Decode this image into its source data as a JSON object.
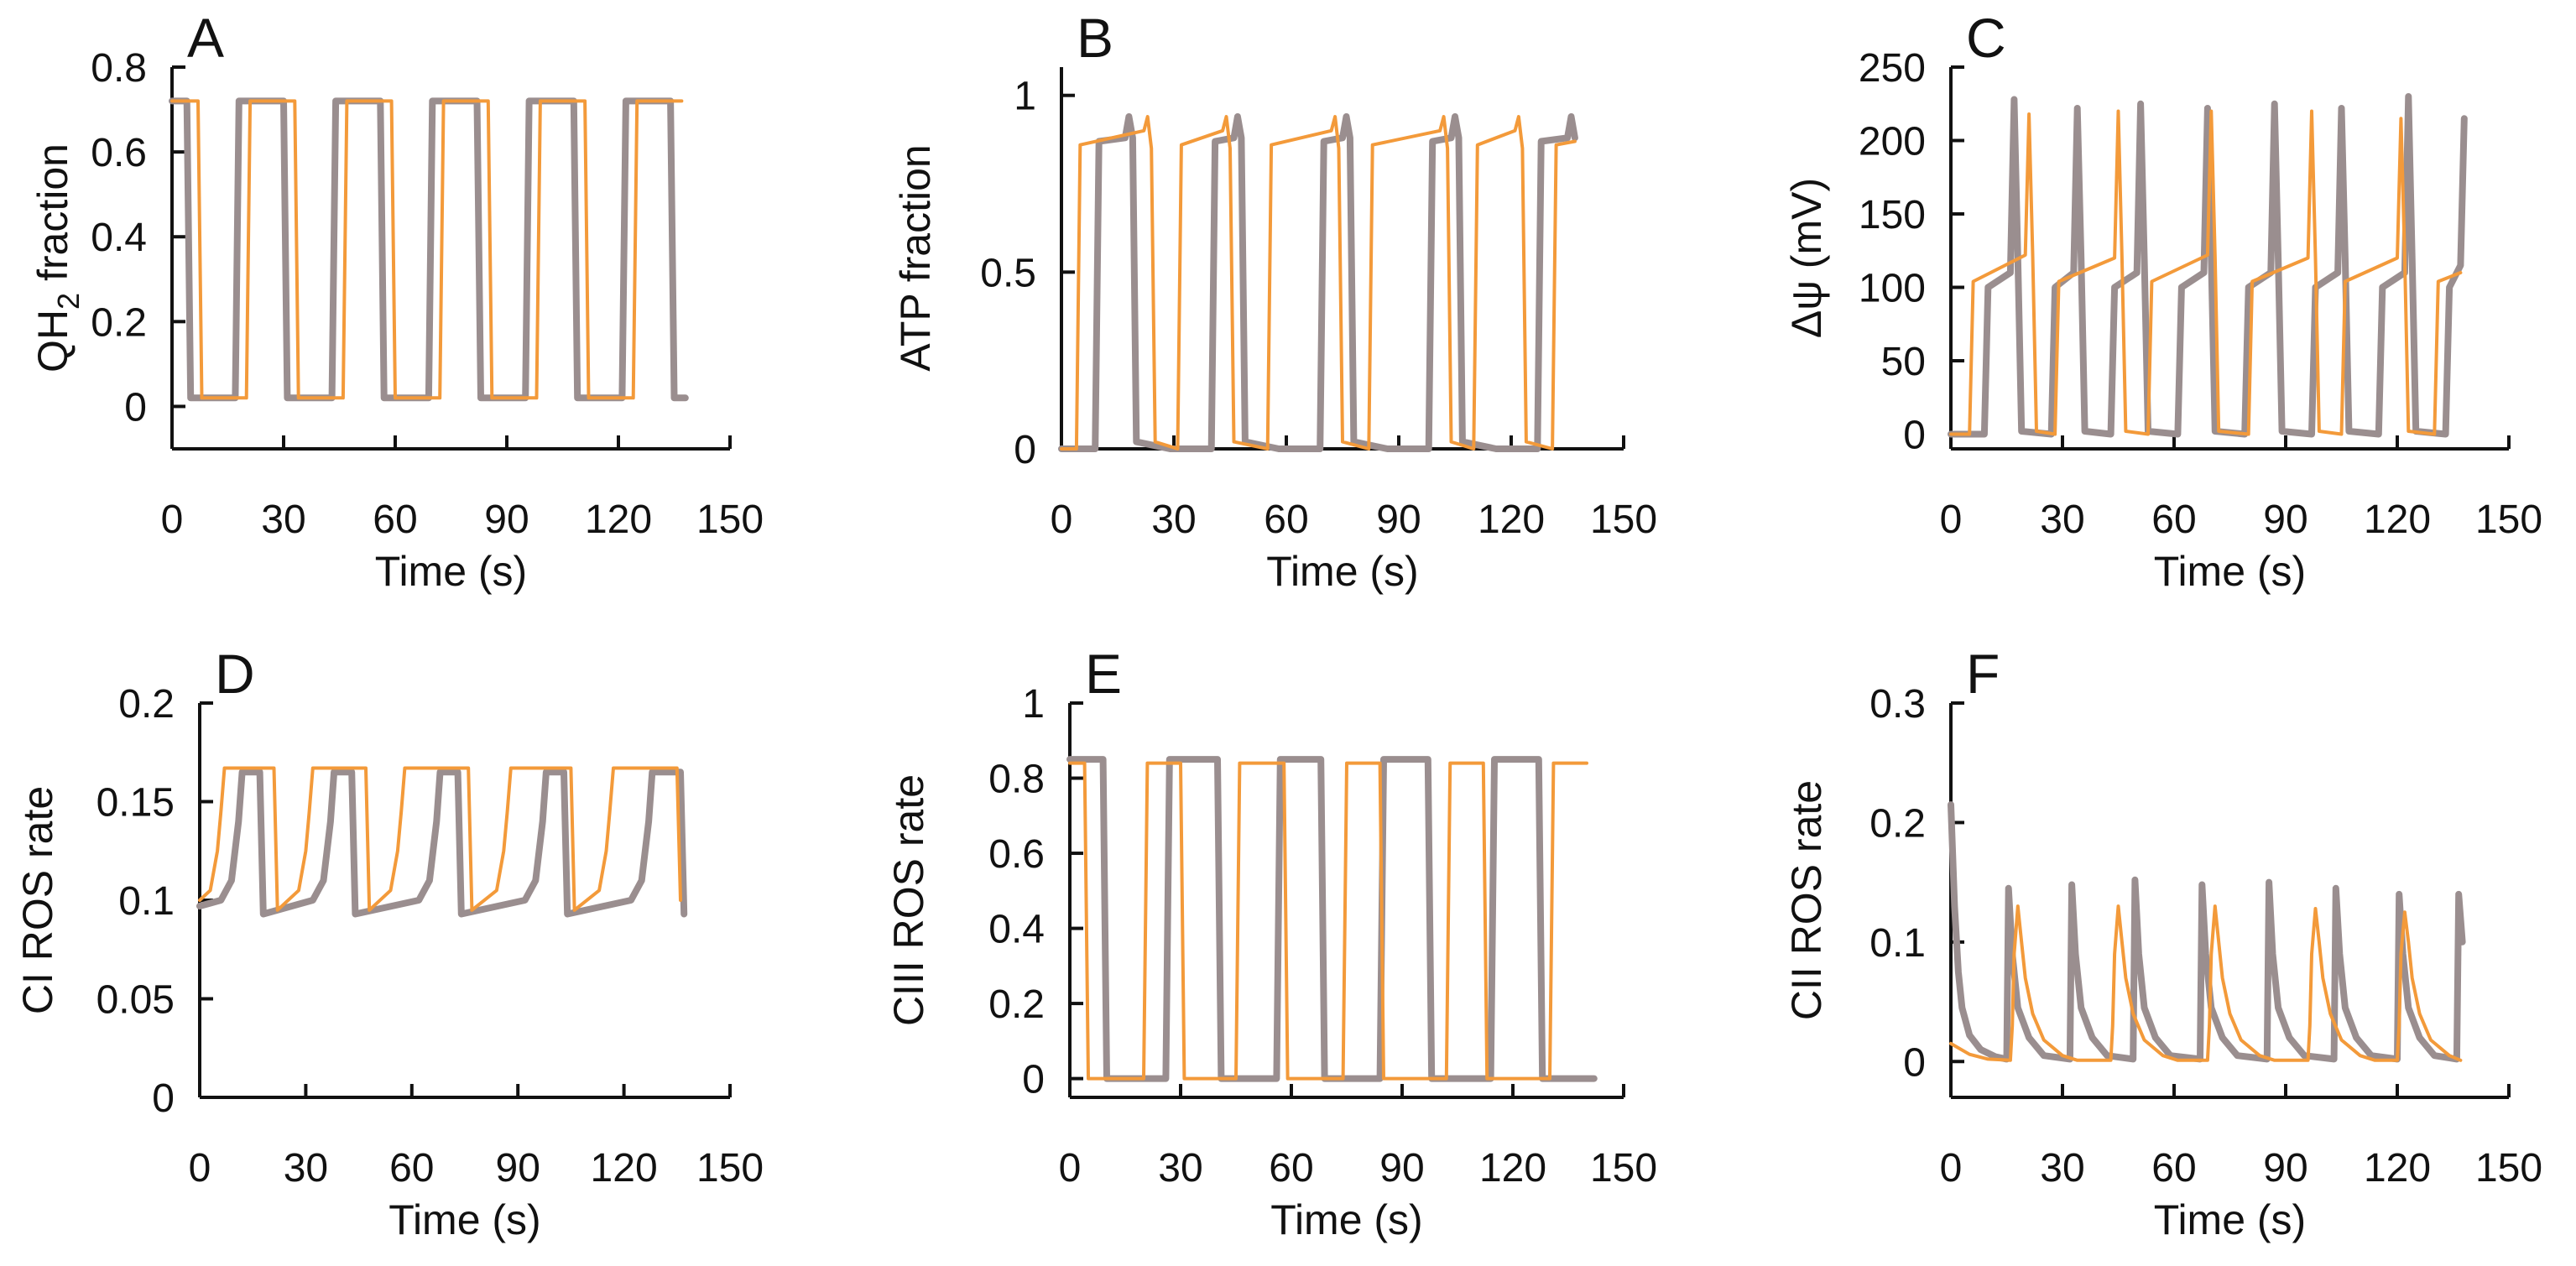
{
  "colors": {
    "gray": "#9a8e8f",
    "orange": "#f39a3a",
    "axis": "#111111"
  },
  "chart_data": [
    {
      "id": "A",
      "type": "line",
      "letter": "A",
      "xlabel": "Time (s)",
      "ylabel": "QH",
      "ylabel_sub": "2",
      "ylabel_rest": " fraction",
      "xlim": [
        0,
        150
      ],
      "ylim": [
        -0.1,
        0.8
      ],
      "xticks": [
        0,
        30,
        60,
        90,
        120,
        150
      ],
      "xtick_labels": [
        "0",
        "30",
        "60",
        "90",
        "120",
        "150"
      ],
      "yticks": [
        0,
        0.2,
        0.4,
        0.6,
        0.8
      ],
      "ytick_labels": [
        "0",
        "0.2",
        "0.4",
        "0.6",
        "0.8"
      ],
      "series": [
        {
          "name": "gray",
          "color": "gray",
          "width": 8,
          "x": [
            0,
            4,
            5,
            17,
            18,
            30,
            31,
            43,
            44,
            56,
            57,
            69,
            70,
            82,
            83,
            95,
            96,
            108,
            109,
            121,
            122,
            134,
            135,
            138
          ],
          "y": [
            0.72,
            0.72,
            0.02,
            0.02,
            0.72,
            0.72,
            0.02,
            0.02,
            0.72,
            0.72,
            0.02,
            0.02,
            0.72,
            0.72,
            0.02,
            0.02,
            0.72,
            0.72,
            0.02,
            0.02,
            0.72,
            0.72,
            0.02,
            0.02
          ]
        },
        {
          "name": "orange",
          "color": "orange",
          "width": 4,
          "x": [
            0,
            7,
            8,
            20,
            21,
            33,
            34,
            46,
            47,
            59,
            60,
            72,
            73,
            85,
            86,
            98,
            99,
            111,
            112,
            124,
            125,
            137
          ],
          "y": [
            0.72,
            0.72,
            0.02,
            0.02,
            0.72,
            0.72,
            0.02,
            0.02,
            0.72,
            0.72,
            0.02,
            0.02,
            0.72,
            0.72,
            0.02,
            0.02,
            0.72,
            0.72,
            0.02,
            0.02,
            0.72,
            0.72
          ]
        }
      ]
    },
    {
      "id": "B",
      "type": "line",
      "letter": "B",
      "xlabel": "Time (s)",
      "ylabel": "ATP fraction",
      "xlim": [
        0,
        150
      ],
      "ylim": [
        0,
        1.08
      ],
      "xticks": [
        0,
        30,
        60,
        90,
        120,
        150
      ],
      "xtick_labels": [
        "0",
        "30",
        "60",
        "90",
        "120",
        "150"
      ],
      "yticks": [
        0,
        0.5,
        1
      ],
      "ytick_labels": [
        "0",
        "0.5",
        "1"
      ],
      "series": [
        {
          "name": "gray",
          "color": "gray",
          "width": 8,
          "x": [
            0,
            9,
            10,
            17,
            18,
            19,
            20,
            29,
            30,
            40,
            41,
            46,
            47,
            48,
            49,
            58,
            59,
            69,
            70,
            75,
            76,
            77,
            78,
            87,
            88,
            98,
            99,
            104,
            105,
            106,
            107,
            116,
            117,
            127,
            128,
            135,
            136,
            137
          ],
          "y": [
            0,
            0,
            0.87,
            0.88,
            0.94,
            0.88,
            0.02,
            0,
            0,
            0,
            0.87,
            0.88,
            0.94,
            0.88,
            0.02,
            0,
            0,
            0,
            0.87,
            0.88,
            0.94,
            0.88,
            0.02,
            0,
            0,
            0,
            0.87,
            0.88,
            0.94,
            0.88,
            0.02,
            0,
            0,
            0,
            0.87,
            0.88,
            0.94,
            0.88
          ]
        },
        {
          "name": "orange",
          "color": "orange",
          "width": 4,
          "x": [
            0,
            4,
            5,
            22,
            23,
            24,
            25,
            31,
            32,
            43,
            44,
            45,
            46,
            55,
            56,
            72,
            73,
            74,
            75,
            82,
            83,
            101,
            102,
            103,
            104,
            110,
            111,
            121,
            122,
            123,
            124,
            131,
            132,
            137
          ],
          "y": [
            0,
            0,
            0.86,
            0.9,
            0.94,
            0.85,
            0.02,
            0,
            0.86,
            0.9,
            0.94,
            0.85,
            0.02,
            0,
            0.86,
            0.9,
            0.94,
            0.85,
            0.02,
            0,
            0.86,
            0.9,
            0.94,
            0.85,
            0.02,
            0,
            0.86,
            0.9,
            0.94,
            0.85,
            0.02,
            0,
            0.86,
            0.87
          ]
        }
      ]
    },
    {
      "id": "C",
      "type": "line",
      "letter": "C",
      "xlabel": "Time (s)",
      "ylabel": "Δψ (mV)",
      "xlim": [
        0,
        150
      ],
      "ylim": [
        -10,
        250
      ],
      "xticks": [
        0,
        30,
        60,
        90,
        120,
        150
      ],
      "xtick_labels": [
        "0",
        "30",
        "60",
        "90",
        "120",
        "150"
      ],
      "yticks": [
        0,
        50,
        100,
        150,
        200,
        250
      ],
      "ytick_labels": [
        "0",
        "50",
        "100",
        "150",
        "200",
        "250"
      ],
      "series": [
        {
          "name": "gray",
          "color": "gray",
          "width": 8,
          "x": [
            0,
            9,
            10,
            16,
            17,
            18,
            19,
            27,
            28,
            33,
            34,
            35,
            36,
            43,
            44,
            50,
            51,
            52,
            53,
            61,
            62,
            68,
            69,
            70,
            71,
            79,
            80,
            86,
            87,
            88,
            89,
            97,
            98,
            104,
            105,
            106,
            107,
            115,
            116,
            122,
            123,
            124,
            125,
            133,
            134,
            137,
            138
          ],
          "y": [
            0,
            0,
            100,
            110,
            228,
            120,
            2,
            0,
            100,
            110,
            222,
            120,
            2,
            0,
            100,
            110,
            225,
            120,
            2,
            0,
            100,
            110,
            222,
            120,
            2,
            0,
            100,
            110,
            225,
            120,
            2,
            0,
            100,
            110,
            222,
            120,
            2,
            0,
            100,
            110,
            230,
            120,
            2,
            0,
            100,
            115,
            215
          ]
        },
        {
          "name": "orange",
          "color": "orange",
          "width": 4,
          "x": [
            0,
            5,
            6,
            20,
            21,
            22,
            23,
            28,
            29,
            44,
            45,
            46,
            47,
            53,
            54,
            69,
            70,
            71,
            72,
            80,
            81,
            96,
            97,
            98,
            99,
            105,
            106,
            120,
            121,
            122,
            123,
            130,
            131,
            137
          ],
          "y": [
            0,
            0,
            104,
            122,
            218,
            122,
            2,
            0,
            104,
            120,
            220,
            120,
            2,
            0,
            104,
            122,
            220,
            122,
            2,
            0,
            104,
            120,
            220,
            120,
            2,
            0,
            104,
            120,
            215,
            120,
            2,
            0,
            104,
            110
          ]
        }
      ]
    },
    {
      "id": "D",
      "type": "line",
      "letter": "D",
      "xlabel": "Time (s)",
      "ylabel": "CI ROS rate",
      "xlim": [
        0,
        150
      ],
      "ylim": [
        0,
        0.2
      ],
      "xticks": [
        0,
        30,
        60,
        90,
        120,
        150
      ],
      "xtick_labels": [
        "0",
        "30",
        "60",
        "90",
        "120",
        "150"
      ],
      "yticks": [
        0,
        0.05,
        0.1,
        0.15,
        0.2
      ],
      "ytick_labels": [
        "0",
        "0.05",
        "0.1",
        "0.15",
        "0.2"
      ],
      "series": [
        {
          "name": "gray",
          "color": "gray",
          "width": 8,
          "x": [
            0,
            6,
            9,
            11,
            12,
            17,
            18,
            32,
            35,
            37,
            38,
            43,
            44,
            62,
            65,
            67,
            68,
            73,
            74,
            92,
            95,
            97,
            98,
            103,
            104,
            122,
            125,
            127,
            128,
            136,
            137
          ],
          "y": [
            0.097,
            0.1,
            0.11,
            0.14,
            0.165,
            0.165,
            0.093,
            0.1,
            0.11,
            0.14,
            0.165,
            0.165,
            0.093,
            0.1,
            0.11,
            0.14,
            0.165,
            0.165,
            0.093,
            0.1,
            0.11,
            0.14,
            0.165,
            0.165,
            0.093,
            0.1,
            0.11,
            0.14,
            0.165,
            0.165,
            0.093
          ]
        },
        {
          "name": "orange",
          "color": "orange",
          "width": 4,
          "x": [
            0,
            3,
            5,
            6,
            7,
            21,
            22,
            28,
            30,
            31,
            32,
            47,
            48,
            54,
            56,
            57,
            58,
            76,
            77,
            84,
            86,
            87,
            88,
            105,
            106,
            113,
            115,
            116,
            117,
            135,
            136
          ],
          "y": [
            0.1,
            0.105,
            0.125,
            0.145,
            0.167,
            0.167,
            0.095,
            0.105,
            0.125,
            0.145,
            0.167,
            0.167,
            0.095,
            0.105,
            0.125,
            0.145,
            0.167,
            0.167,
            0.095,
            0.105,
            0.125,
            0.145,
            0.167,
            0.167,
            0.095,
            0.105,
            0.125,
            0.145,
            0.167,
            0.167,
            0.1
          ]
        }
      ]
    },
    {
      "id": "E",
      "type": "line",
      "letter": "E",
      "xlabel": "Time (s)",
      "ylabel": "CIII ROS rate",
      "xlim": [
        0,
        150
      ],
      "ylim": [
        -0.05,
        1
      ],
      "xticks": [
        0,
        30,
        60,
        90,
        120,
        150
      ],
      "xtick_labels": [
        "0",
        "30",
        "60",
        "90",
        "120",
        "150"
      ],
      "yticks": [
        0,
        0.2,
        0.4,
        0.6,
        0.8,
        1
      ],
      "ytick_labels": [
        "0",
        "0.2",
        "0.4",
        "0.6",
        "0.8",
        "1"
      ],
      "series": [
        {
          "name": "gray",
          "color": "gray",
          "width": 8,
          "x": [
            0,
            9,
            10,
            26,
            27,
            40,
            41,
            56,
            57,
            68,
            69,
            84,
            85,
            97,
            98,
            114,
            115,
            127,
            128,
            142
          ],
          "y": [
            0.85,
            0.85,
            0,
            0,
            0.85,
            0.85,
            0,
            0,
            0.85,
            0.85,
            0,
            0,
            0.85,
            0.85,
            0,
            0,
            0.85,
            0.85,
            0,
            0
          ]
        },
        {
          "name": "orange",
          "color": "orange",
          "width": 4,
          "x": [
            0,
            4,
            5,
            20,
            21,
            30,
            31,
            45,
            46,
            58,
            59,
            74,
            75,
            84,
            85,
            102,
            103,
            112,
            113,
            130,
            131,
            140
          ],
          "y": [
            0.84,
            0.84,
            0,
            0,
            0.84,
            0.84,
            0,
            0,
            0.84,
            0.84,
            0,
            0,
            0.84,
            0.84,
            0,
            0,
            0.84,
            0.84,
            0,
            0,
            0.84,
            0.84
          ]
        }
      ]
    },
    {
      "id": "F",
      "type": "line",
      "letter": "F",
      "xlabel": "Time (s)",
      "ylabel": "CII ROS rate",
      "xlim": [
        0,
        150
      ],
      "ylim": [
        -0.03,
        0.3
      ],
      "xticks": [
        0,
        30,
        60,
        90,
        120,
        150
      ],
      "xtick_labels": [
        "0",
        "30",
        "60",
        "90",
        "120",
        "150"
      ],
      "yticks": [
        0,
        0.1,
        0.2,
        0.3
      ],
      "ytick_labels": [
        "0",
        "0.1",
        "0.2",
        "0.3"
      ],
      "series": [
        {
          "name": "gray",
          "color": "gray",
          "width": 8,
          "x": [
            0,
            1,
            2,
            3,
            5,
            8,
            12,
            15,
            15.5,
            16.5,
            18,
            21,
            25,
            32,
            32.5,
            33.5,
            35,
            38,
            42,
            49,
            49.5,
            50.5,
            52,
            55,
            59,
            67,
            67.5,
            68.5,
            70,
            73,
            77,
            85,
            85.5,
            86.5,
            88,
            91,
            95,
            103,
            103.5,
            104.5,
            106,
            109,
            113,
            120,
            120.5,
            121.5,
            123,
            126,
            130,
            136,
            136.5,
            137.5
          ],
          "y": [
            0.215,
            0.13,
            0.075,
            0.045,
            0.022,
            0.01,
            0.004,
            0.002,
            0.145,
            0.09,
            0.045,
            0.02,
            0.005,
            0.002,
            0.148,
            0.09,
            0.045,
            0.02,
            0.005,
            0.002,
            0.152,
            0.09,
            0.045,
            0.02,
            0.005,
            0.002,
            0.148,
            0.09,
            0.045,
            0.02,
            0.005,
            0.002,
            0.15,
            0.09,
            0.045,
            0.02,
            0.005,
            0.002,
            0.145,
            0.09,
            0.045,
            0.02,
            0.005,
            0.002,
            0.14,
            0.09,
            0.045,
            0.02,
            0.005,
            0.002,
            0.14,
            0.1
          ]
        },
        {
          "name": "orange",
          "color": "orange",
          "width": 4,
          "x": [
            0,
            5,
            10,
            16,
            16.5,
            17,
            18,
            19,
            20,
            22,
            25,
            30,
            34,
            43,
            43.5,
            44,
            45,
            46,
            47,
            49,
            52,
            57,
            61,
            69,
            69.5,
            70,
            71,
            72,
            73,
            75,
            78,
            83,
            87,
            96,
            96.5,
            97,
            98,
            99,
            100,
            102,
            105,
            110,
            114,
            120,
            120.5,
            121,
            122,
            123,
            124,
            126,
            129,
            134,
            137
          ],
          "y": [
            0.015,
            0.006,
            0.002,
            0.001,
            0.03,
            0.09,
            0.13,
            0.1,
            0.07,
            0.04,
            0.018,
            0.005,
            0.001,
            0.001,
            0.03,
            0.09,
            0.13,
            0.1,
            0.07,
            0.04,
            0.018,
            0.005,
            0.001,
            0.001,
            0.03,
            0.09,
            0.13,
            0.1,
            0.07,
            0.04,
            0.018,
            0.005,
            0.001,
            0.001,
            0.03,
            0.09,
            0.128,
            0.1,
            0.07,
            0.04,
            0.018,
            0.005,
            0.001,
            0.001,
            0.03,
            0.09,
            0.125,
            0.1,
            0.07,
            0.04,
            0.018,
            0.005,
            0.001
          ]
        }
      ]
    }
  ]
}
